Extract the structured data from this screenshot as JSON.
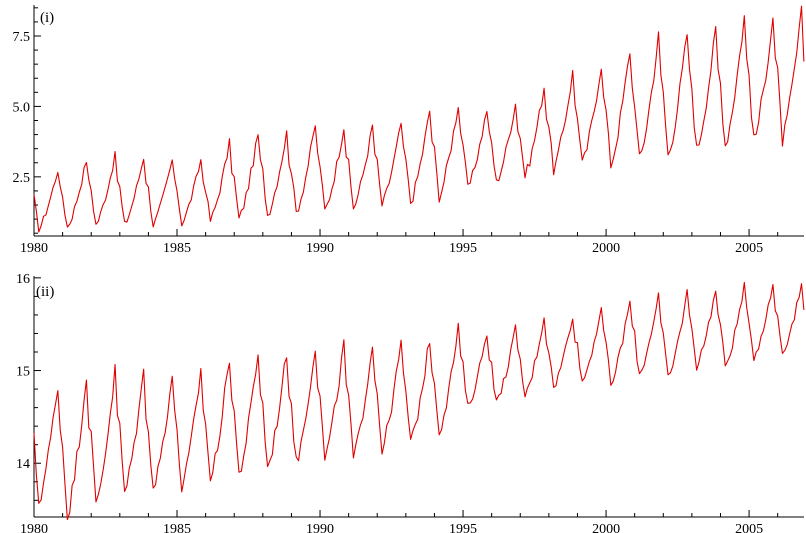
{
  "chart_data": [
    {
      "type": "line",
      "panel_label": "(i)",
      "xlim": [
        1980.0,
        2006.92
      ],
      "ylim": [
        0.4,
        8.6
      ],
      "x_ticks": [
        1980,
        1985,
        1990,
        1995,
        2000,
        2005
      ],
      "x_tick_labels": [
        "1980",
        "1985",
        "1990",
        "1995",
        "2000",
        "2005"
      ],
      "y_ticks": [
        2.5,
        5.0,
        7.5
      ],
      "y_tick_labels": [
        "2.5",
        "5.0",
        "7.5"
      ],
      "grid": false,
      "color": "#e00000",
      "x": [
        1980.0,
        1981.0,
        1982.0,
        1983.0,
        1984.0,
        1985.0,
        1986.0,
        1987.0,
        1988.0,
        1989.0,
        1990.0,
        1991.0,
        1992.0,
        1993.0,
        1994.0,
        1995.0,
        1996.0,
        1997.0,
        1998.0,
        1999.0,
        2000.0,
        2001.0,
        2002.0,
        2003.0,
        2004.0,
        2005.0,
        2006.0
      ],
      "series": [
        {
          "trough": [
            0.65,
            0.72,
            0.8,
            0.8,
            0.8,
            0.85,
            0.95,
            1.0,
            1.15,
            1.25,
            1.3,
            1.4,
            1.5,
            1.6,
            1.8,
            2.1,
            2.3,
            2.55,
            2.75,
            2.95,
            2.95,
            3.1,
            3.25,
            3.45,
            3.65,
            3.75,
            3.8
          ],
          "peak": [
            2.75,
            3.1,
            3.25,
            3.2,
            3.1,
            3.1,
            3.7,
            4.0,
            4.05,
            4.35,
            4.3,
            4.3,
            4.4,
            4.85,
            5.1,
            4.9,
            5.1,
            5.7,
            6.2,
            6.5,
            7.0,
            7.5,
            7.6,
            7.7,
            8.2,
            8.2,
            8.3
          ]
        }
      ]
    },
    {
      "type": "line",
      "panel_label": "(ii)",
      "xlim": [
        1980.0,
        2006.92
      ],
      "ylim": [
        13.42,
        16.02
      ],
      "x_ticks": [
        1980,
        1985,
        1990,
        1995,
        2000,
        2005
      ],
      "x_tick_labels": [
        "1980",
        "1985",
        "1990",
        "1995",
        "2000",
        "2005"
      ],
      "y_ticks": [
        14,
        15,
        16
      ],
      "y_tick_labels": [
        "14",
        "15",
        "16"
      ],
      "grid": false,
      "color": "#e00000",
      "x": [
        1980.0,
        1981.0,
        1982.0,
        1983.0,
        1984.0,
        1985.0,
        1986.0,
        1987.0,
        1988.0,
        1989.0,
        1990.0,
        1991.0,
        1992.0,
        1993.0,
        1994.0,
        1995.0,
        1996.0,
        1997.0,
        1998.0,
        1999.0,
        2000.0,
        2001.0,
        2002.0,
        2003.0,
        2004.0,
        2005.0,
        2006.0
      ],
      "series": [
        {
          "trough": [
            13.58,
            13.45,
            13.55,
            13.68,
            13.72,
            13.72,
            13.82,
            13.88,
            13.95,
            14.0,
            14.05,
            14.05,
            14.15,
            14.22,
            14.35,
            14.6,
            14.65,
            14.72,
            14.82,
            14.88,
            14.85,
            14.95,
            14.9,
            15.05,
            15.05,
            15.15,
            15.2
          ],
          "peak": [
            14.85,
            14.95,
            15.0,
            14.98,
            14.95,
            15.0,
            15.15,
            15.2,
            15.2,
            15.28,
            15.28,
            15.3,
            15.3,
            15.35,
            15.45,
            15.42,
            15.45,
            15.58,
            15.6,
            15.68,
            15.75,
            15.82,
            15.85,
            15.88,
            15.9,
            15.92,
            15.92
          ]
        }
      ]
    }
  ]
}
